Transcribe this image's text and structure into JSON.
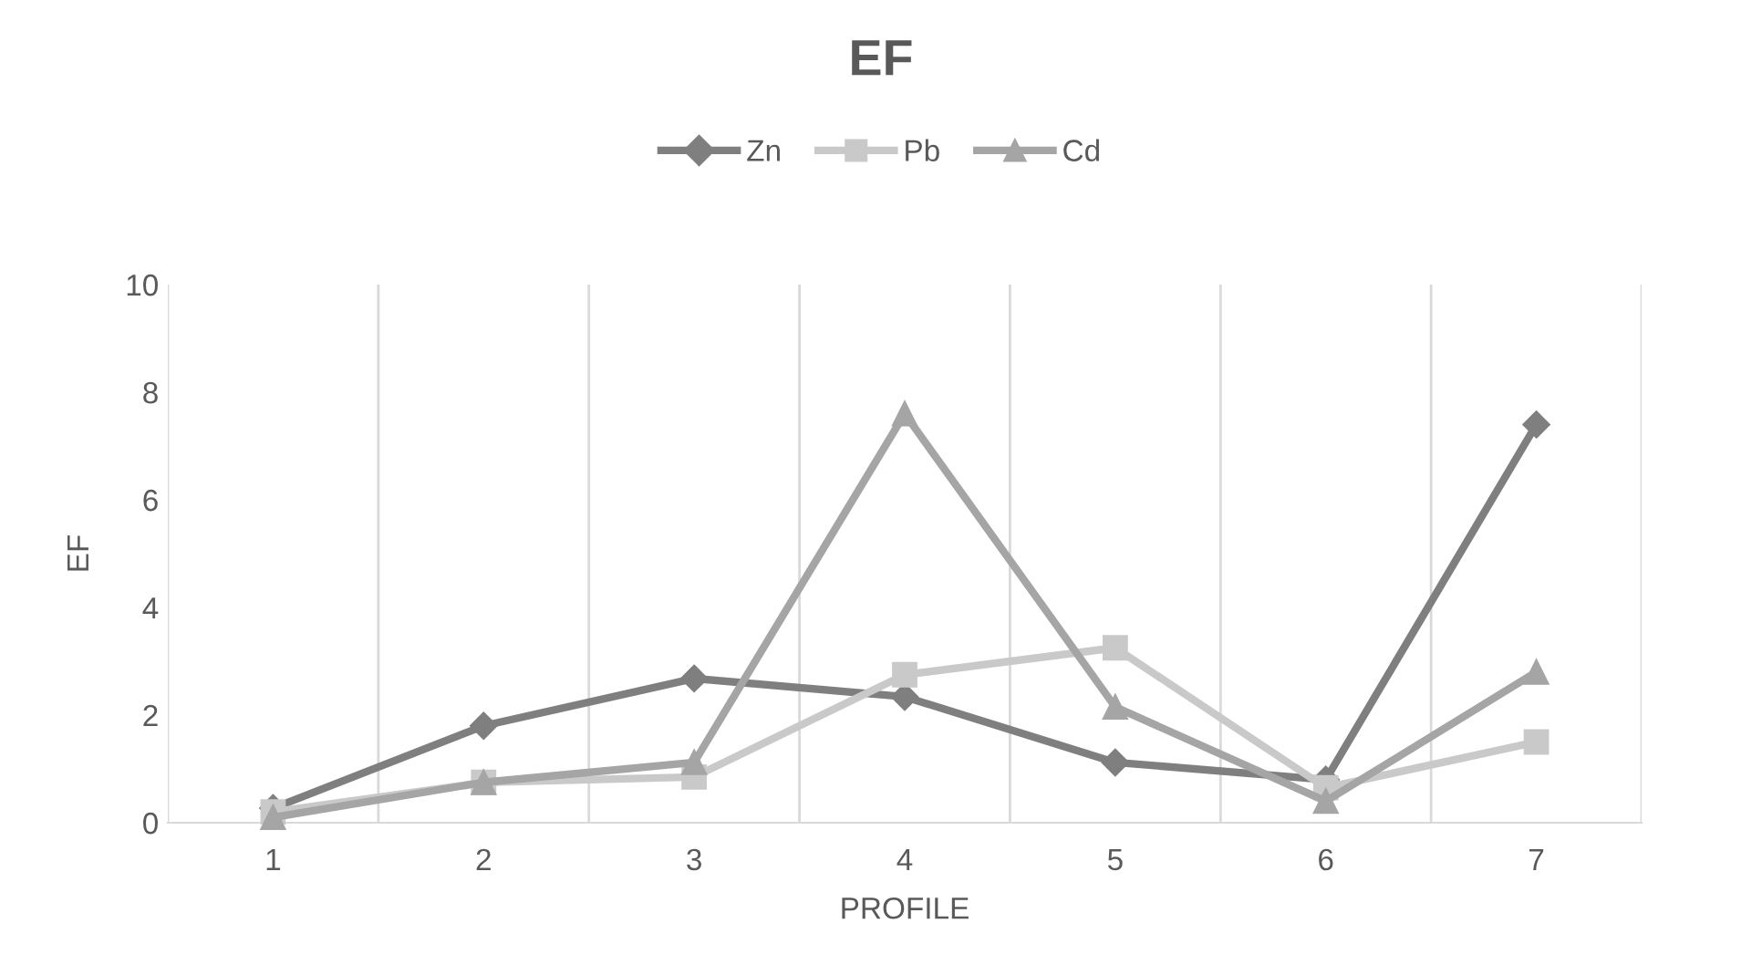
{
  "chart_data": {
    "type": "line",
    "title": "EF",
    "xlabel": "PROFILE",
    "ylabel": "EF",
    "categories": [
      "1",
      "2",
      "3",
      "4",
      "5",
      "6",
      "7"
    ],
    "series": [
      {
        "name": "Zn",
        "color": "#7f7f7f",
        "marker": "diamond",
        "values": [
          0.27,
          1.8,
          2.68,
          2.34,
          1.12,
          0.8,
          7.4
        ]
      },
      {
        "name": "Pb",
        "color": "#c9c9c9",
        "marker": "square",
        "values": [
          0.2,
          0.75,
          0.85,
          2.75,
          3.25,
          0.65,
          1.5
        ]
      },
      {
        "name": "Cd",
        "color": "#a5a5a5",
        "marker": "triangle",
        "values": [
          0.1,
          0.75,
          1.12,
          7.6,
          2.15,
          0.4,
          2.8
        ]
      }
    ],
    "ylim": [
      0,
      10
    ],
    "yticks": [
      0,
      2,
      4,
      6,
      8,
      10
    ],
    "grid": "x",
    "legend": "top",
    "line_style": "solid"
  }
}
